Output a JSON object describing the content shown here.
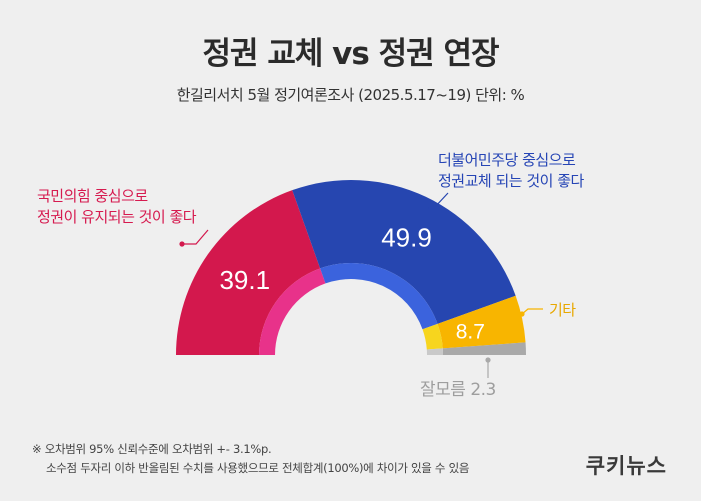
{
  "header": {
    "title": "정권 교체 vs 정권 연장",
    "subtitle": "한길리서치 5월 정기여론조사 (2025.5.17~19) 단위: %"
  },
  "chart_data": {
    "type": "pie",
    "variant": "half-donut",
    "unit": "%",
    "series": [
      {
        "name": "국민의힘 중심으로 정권이 유지되는 것이 좋다",
        "value": 39.1,
        "color": "#d3184d",
        "inner_color": "#e8328a",
        "label_lines": [
          "국민의힘 중심으로",
          "정권이 유지되는 것이 좋다"
        ]
      },
      {
        "name": "더불어민주당 중심으로 정권교체 되는 것이 좋다",
        "value": 49.9,
        "color": "#2646b0",
        "inner_color": "#3b63dd",
        "label_lines": [
          "더불어민주당 중심으로",
          "정권교체 되는 것이 좋다"
        ]
      },
      {
        "name": "기타",
        "value": 8.7,
        "color": "#f8b500",
        "inner_color": "#f7d51e",
        "label_lines": [
          "기타"
        ]
      },
      {
        "name": "잘모름",
        "value": 2.3,
        "color": "#a9a9a9",
        "inner_color": "#c9c9c9",
        "label_lines": [
          "잘모름 2.3"
        ]
      }
    ],
    "value_labels": [
      "39.1",
      "49.9",
      "8.7"
    ]
  },
  "footer": {
    "note_line1": "※ 오차범위 95% 신뢰수준에 오차범위 +- 3.1%p.",
    "note_line2": "소수점 두자리 이하 반올림된 수치를 사용했으므로 전체합계(100%)에 차이가 있을 수 있음",
    "brand": "쿠키뉴스"
  }
}
